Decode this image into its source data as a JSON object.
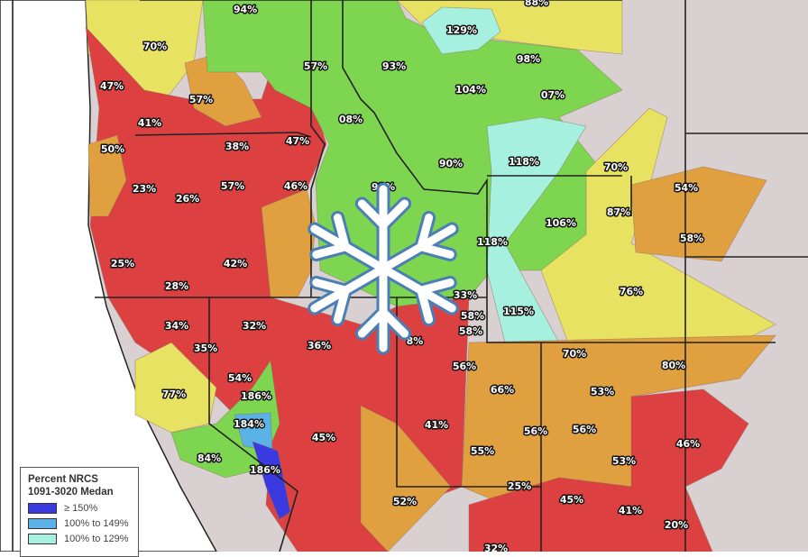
{
  "colors": {
    "red": "#dd4040",
    "orange": "#e0a040",
    "yellow": "#e8e262",
    "green": "#7ed650",
    "cyan": "#a6f0e0",
    "light_blue": "#5ab2e8",
    "dark_blue": "#3a3ae0",
    "land": "#d9d1d1",
    "ocean": "#ffffff",
    "snowflake_fill": "#ffffff",
    "snowflake_outline": "#4a7fb5"
  },
  "icon": "snowflake-icon",
  "labels": [
    "94%",
    "88%",
    "129%",
    "70%",
    "57%",
    "93%",
    "98%",
    "47%",
    "57%",
    "104%",
    "07%",
    "41%",
    "08%",
    "38%",
    "47%",
    "50%",
    "118%",
    "70%",
    "23%",
    "26%",
    "57%",
    "46%",
    "90%",
    "98%",
    "54%",
    "87%",
    "106%",
    "118%",
    "58%",
    "25%",
    "42%",
    "28%",
    "76%",
    "33%",
    "58%",
    "58%",
    "115%",
    "34%",
    "32%",
    "35%",
    "36%",
    "8%",
    "70%",
    "80%",
    "56%",
    "66%",
    "53%",
    "54%",
    "77%",
    "186%",
    "184%",
    "41%",
    "45%",
    "56%",
    "56%",
    "46%",
    "55%",
    "84%",
    "53%",
    "186%",
    "25%",
    "52%",
    "45%",
    "41%",
    "20%",
    "32%"
  ],
  "legend": {
    "title_line1": "Percent NRCS",
    "title_line2": "1091-3020 Medan",
    "items": [
      {
        "label": "≥ 150%",
        "color": "#3a3ae0"
      },
      {
        "label": "100% to 149%",
        "color": "#5ab2e8"
      },
      {
        "label": "100% to 129%",
        "color": "#a6f0e0"
      }
    ]
  }
}
